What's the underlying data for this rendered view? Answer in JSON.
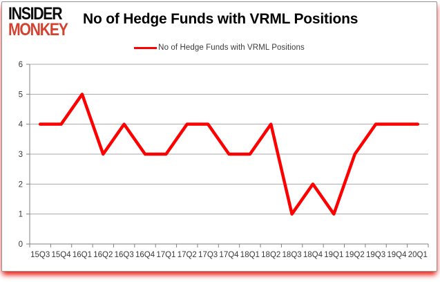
{
  "logo": {
    "line1": "INSIDER",
    "line2": "MONKEY",
    "accent_color": "#d24231"
  },
  "header": {
    "title": "No of Hedge Funds with VRML Positions"
  },
  "legend": {
    "label": "No of Hedge Funds with VRML Positions",
    "line_color": "#fe0000"
  },
  "chart_data": {
    "type": "line",
    "title": "No of Hedge Funds with VRML Positions",
    "categories": [
      "15Q3",
      "15Q4",
      "16Q1",
      "16Q2",
      "16Q3",
      "16Q4",
      "17Q1",
      "17Q2",
      "17Q3",
      "17Q4",
      "18Q1",
      "18Q2",
      "18Q3",
      "18Q4",
      "19Q1",
      "19Q2",
      "19Q3",
      "19Q4",
      "20Q1"
    ],
    "series": [
      {
        "name": "No of Hedge Funds with VRML Positions",
        "color": "#fe0000",
        "values": [
          4,
          4,
          5,
          3,
          4,
          3,
          3,
          4,
          4,
          3,
          3,
          4,
          1,
          2,
          1,
          3,
          4,
          4,
          4
        ]
      }
    ],
    "ylim": [
      0,
      6
    ],
    "ytick_step": 1,
    "grid": true,
    "legend_position": "top-center",
    "gridline_color": "#a8a8a8",
    "axis_color": "#808080"
  }
}
